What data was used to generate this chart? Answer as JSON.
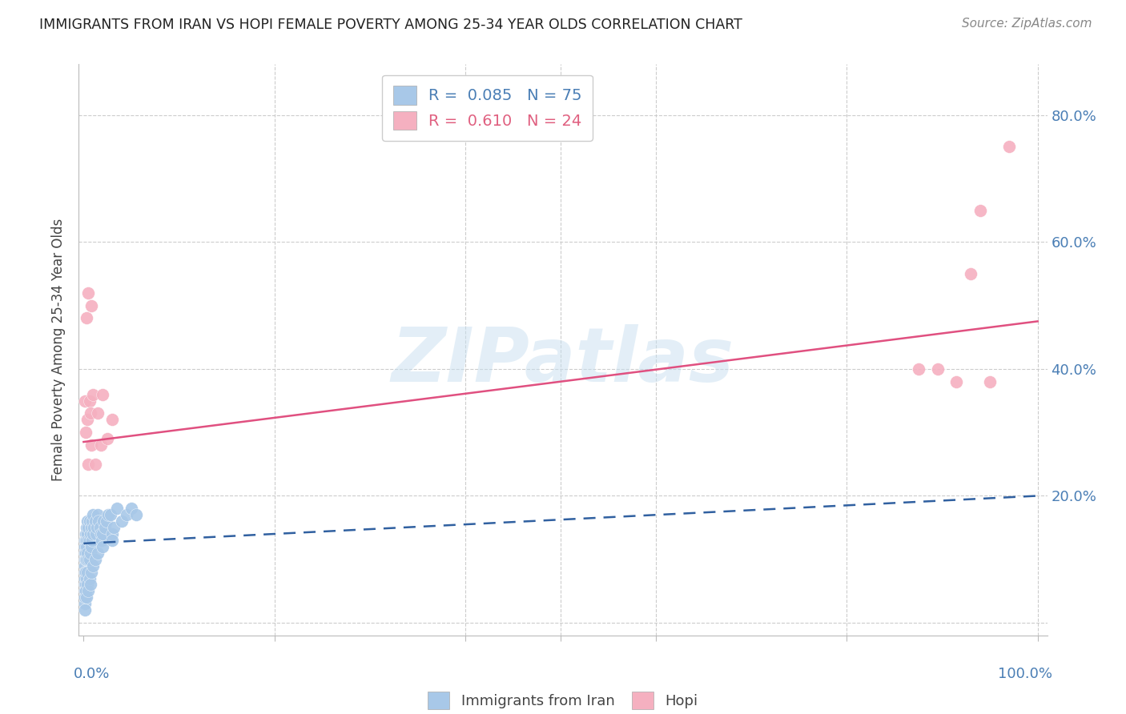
{
  "title": "IMMIGRANTS FROM IRAN VS HOPI FEMALE POVERTY AMONG 25-34 YEAR OLDS CORRELATION CHART",
  "source": "Source: ZipAtlas.com",
  "ylabel": "Female Poverty Among 25-34 Year Olds",
  "background_color": "#ffffff",
  "watermark_text": "ZIPatlas",
  "iran_R": 0.085,
  "iran_N": 75,
  "hopi_R": 0.61,
  "hopi_N": 24,
  "iran_color": "#a8c8e8",
  "hopi_color": "#f5b0c0",
  "iran_line_color": "#3060a0",
  "hopi_line_color": "#e05080",
  "iran_line_style": "--",
  "hopi_line_style": "-",
  "legend_iran_color": "#4a7eb5",
  "legend_hopi_color": "#e06080",
  "iran_x": [
    0.001,
    0.001,
    0.001,
    0.001,
    0.001,
    0.001,
    0.001,
    0.001,
    0.001,
    0.001,
    0.002,
    0.002,
    0.002,
    0.002,
    0.002,
    0.002,
    0.003,
    0.003,
    0.003,
    0.003,
    0.003,
    0.004,
    0.004,
    0.004,
    0.004,
    0.005,
    0.005,
    0.005,
    0.006,
    0.006,
    0.006,
    0.007,
    0.007,
    0.008,
    0.008,
    0.009,
    0.009,
    0.01,
    0.01,
    0.011,
    0.012,
    0.013,
    0.014,
    0.015,
    0.016,
    0.017,
    0.018,
    0.019,
    0.02,
    0.021,
    0.022,
    0.024,
    0.026,
    0.028,
    0.03,
    0.032,
    0.035,
    0.04,
    0.045,
    0.05,
    0.001,
    0.001,
    0.002,
    0.003,
    0.004,
    0.005,
    0.006,
    0.007,
    0.008,
    0.01,
    0.012,
    0.015,
    0.02,
    0.03,
    0.055
  ],
  "iran_y": [
    0.13,
    0.12,
    0.11,
    0.1,
    0.09,
    0.08,
    0.07,
    0.06,
    0.05,
    0.03,
    0.14,
    0.13,
    0.11,
    0.1,
    0.08,
    0.06,
    0.15,
    0.13,
    0.12,
    0.1,
    0.07,
    0.16,
    0.14,
    0.11,
    0.08,
    0.15,
    0.13,
    0.1,
    0.16,
    0.13,
    0.1,
    0.14,
    0.11,
    0.15,
    0.12,
    0.16,
    0.13,
    0.17,
    0.14,
    0.15,
    0.16,
    0.14,
    0.15,
    0.17,
    0.16,
    0.15,
    0.14,
    0.13,
    0.14,
    0.16,
    0.15,
    0.16,
    0.17,
    0.17,
    0.14,
    0.15,
    0.18,
    0.16,
    0.17,
    0.18,
    0.04,
    0.02,
    0.05,
    0.04,
    0.06,
    0.05,
    0.07,
    0.06,
    0.08,
    0.09,
    0.1,
    0.11,
    0.12,
    0.13,
    0.17
  ],
  "hopi_x": [
    0.001,
    0.002,
    0.003,
    0.004,
    0.005,
    0.006,
    0.007,
    0.008,
    0.01,
    0.012,
    0.015,
    0.018,
    0.02,
    0.025,
    0.03,
    0.005,
    0.008,
    0.875,
    0.895,
    0.915,
    0.93,
    0.94,
    0.95,
    0.97
  ],
  "hopi_y": [
    0.35,
    0.3,
    0.48,
    0.32,
    0.25,
    0.35,
    0.33,
    0.28,
    0.36,
    0.25,
    0.33,
    0.28,
    0.36,
    0.29,
    0.32,
    0.52,
    0.5,
    0.4,
    0.4,
    0.38,
    0.55,
    0.65,
    0.38,
    0.75
  ],
  "hopi_line_x0": 0.0,
  "hopi_line_y0": 0.285,
  "hopi_line_x1": 1.0,
  "hopi_line_y1": 0.475,
  "iran_line_x0": 0.0,
  "iran_line_y0": 0.125,
  "iran_line_x1": 1.0,
  "iran_line_y1": 0.2,
  "xlim": [
    0.0,
    1.0
  ],
  "ylim": [
    0.0,
    0.88
  ],
  "yticks": [
    0.0,
    0.2,
    0.4,
    0.6,
    0.8
  ],
  "ytick_labels": [
    "",
    "20.0%",
    "40.0%",
    "60.0%",
    "80.0%"
  ]
}
